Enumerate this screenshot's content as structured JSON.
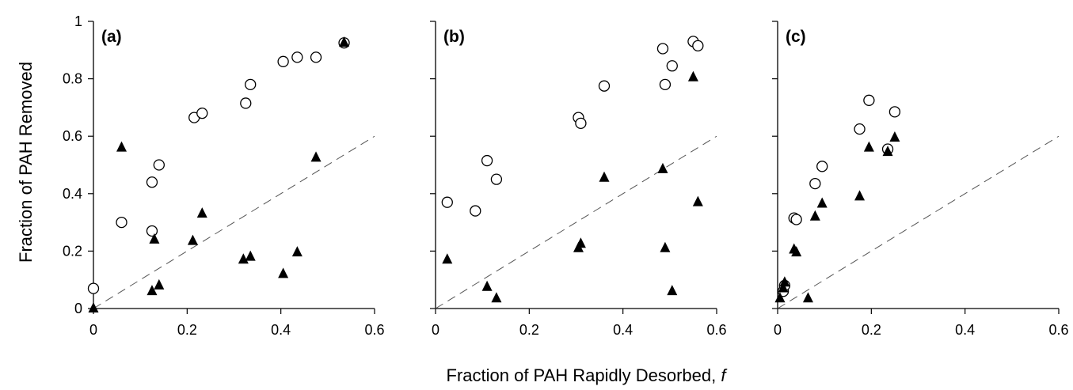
{
  "chart_data": {
    "type": "scatter",
    "ylabel": "Fraction of PAH Removed",
    "xlabel_main": "Fraction of PAH Rapidly Desorbed, ",
    "xlabel_italic": "f",
    "xlim": [
      0,
      0.6
    ],
    "ylim": [
      0,
      1
    ],
    "x_ticks": [
      "0",
      "0.2",
      "0.4",
      "0.6"
    ],
    "y_ticks": [
      "0",
      "0.2",
      "0.4",
      "0.6",
      "0.8",
      "1"
    ],
    "grid": false,
    "panels": [
      {
        "label": "(a)",
        "reference_line": {
          "style": "dashed",
          "x": [
            0,
            0.6
          ],
          "y": [
            0,
            0.6
          ]
        },
        "series": [
          {
            "marker": "open-circle",
            "points": [
              [
                0.0,
                0.07
              ],
              [
                0.06,
                0.3
              ],
              [
                0.125,
                0.27
              ],
              [
                0.125,
                0.44
              ],
              [
                0.14,
                0.5
              ],
              [
                0.215,
                0.665
              ],
              [
                0.232,
                0.68
              ],
              [
                0.325,
                0.715
              ],
              [
                0.335,
                0.78
              ],
              [
                0.405,
                0.86
              ],
              [
                0.435,
                0.875
              ],
              [
                0.475,
                0.875
              ],
              [
                0.535,
                0.925
              ]
            ]
          },
          {
            "marker": "filled-triangle",
            "points": [
              [
                0.0,
                0.0
              ],
              [
                0.06,
                0.56
              ],
              [
                0.125,
                0.06
              ],
              [
                0.13,
                0.24
              ],
              [
                0.14,
                0.08
              ],
              [
                0.212,
                0.235
              ],
              [
                0.232,
                0.33
              ],
              [
                0.32,
                0.17
              ],
              [
                0.335,
                0.18
              ],
              [
                0.405,
                0.12
              ],
              [
                0.435,
                0.195
              ],
              [
                0.475,
                0.525
              ],
              [
                0.535,
                0.925
              ]
            ]
          }
        ]
      },
      {
        "label": "(b)",
        "reference_line": {
          "style": "dashed",
          "x": [
            0,
            0.6
          ],
          "y": [
            0,
            0.6
          ]
        },
        "series": [
          {
            "marker": "open-circle",
            "points": [
              [
                0.025,
                0.37
              ],
              [
                0.085,
                0.34
              ],
              [
                0.11,
                0.515
              ],
              [
                0.13,
                0.45
              ],
              [
                0.305,
                0.665
              ],
              [
                0.31,
                0.645
              ],
              [
                0.36,
                0.775
              ],
              [
                0.485,
                0.905
              ],
              [
                0.49,
                0.78
              ],
              [
                0.505,
                0.845
              ],
              [
                0.55,
                0.93
              ],
              [
                0.56,
                0.915
              ]
            ]
          },
          {
            "marker": "filled-triangle",
            "points": [
              [
                0.025,
                0.17
              ],
              [
                0.11,
                0.075
              ],
              [
                0.13,
                0.035
              ],
              [
                0.305,
                0.21
              ],
              [
                0.31,
                0.225
              ],
              [
                0.36,
                0.455
              ],
              [
                0.485,
                0.485
              ],
              [
                0.49,
                0.21
              ],
              [
                0.505,
                0.06
              ],
              [
                0.55,
                0.805
              ],
              [
                0.56,
                0.37
              ]
            ]
          }
        ]
      },
      {
        "label": "(c)",
        "reference_line": {
          "style": "dashed",
          "x": [
            0,
            0.6
          ],
          "y": [
            0,
            0.6
          ]
        },
        "series": [
          {
            "marker": "open-circle",
            "points": [
              [
                0.012,
                0.06
              ],
              [
                0.015,
                0.08
              ],
              [
                0.035,
                0.315
              ],
              [
                0.04,
                0.31
              ],
              [
                0.08,
                0.435
              ],
              [
                0.095,
                0.495
              ],
              [
                0.175,
                0.625
              ],
              [
                0.195,
                0.725
              ],
              [
                0.235,
                0.555
              ],
              [
                0.25,
                0.685
              ]
            ]
          },
          {
            "marker": "filled-triangle",
            "points": [
              [
                0.005,
                0.035
              ],
              [
                0.015,
                0.09
              ],
              [
                0.012,
                0.07
              ],
              [
                0.035,
                0.205
              ],
              [
                0.04,
                0.195
              ],
              [
                0.065,
                0.035
              ],
              [
                0.08,
                0.32
              ],
              [
                0.095,
                0.365
              ],
              [
                0.175,
                0.39
              ],
              [
                0.195,
                0.56
              ],
              [
                0.235,
                0.545
              ],
              [
                0.25,
                0.595
              ]
            ]
          }
        ]
      }
    ]
  }
}
